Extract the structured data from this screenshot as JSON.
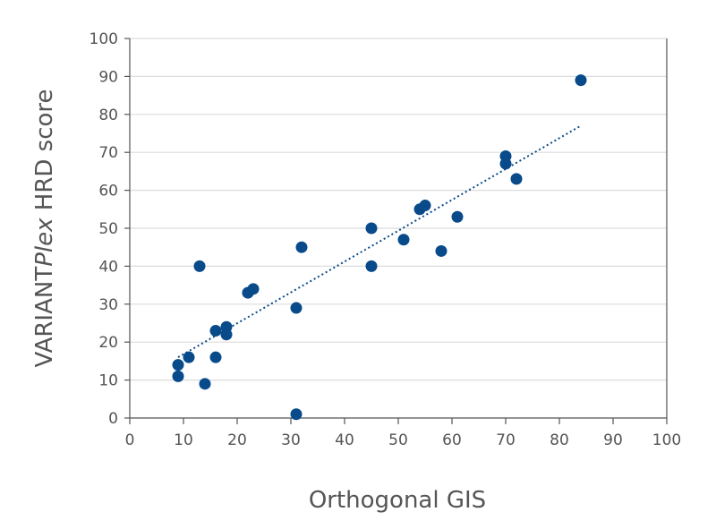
{
  "chart_data": {
    "type": "scatter",
    "xlabel": "Orthogonal GIS",
    "ylabel_parts": [
      "VARIANT",
      "Plex",
      " HRD score"
    ],
    "xlim": [
      0,
      100
    ],
    "ylim": [
      0,
      100
    ],
    "xticks": [
      0,
      10,
      20,
      30,
      40,
      50,
      60,
      70,
      80,
      90,
      100
    ],
    "yticks": [
      0,
      10,
      20,
      30,
      40,
      50,
      60,
      70,
      80,
      90,
      100
    ],
    "grid": "horizontal",
    "points": [
      {
        "x": 9,
        "y": 11
      },
      {
        "x": 9,
        "y": 14
      },
      {
        "x": 11,
        "y": 16
      },
      {
        "x": 13,
        "y": 40
      },
      {
        "x": 14,
        "y": 9
      },
      {
        "x": 16,
        "y": 23
      },
      {
        "x": 16,
        "y": 16
      },
      {
        "x": 18,
        "y": 24
      },
      {
        "x": 18,
        "y": 22
      },
      {
        "x": 22,
        "y": 33
      },
      {
        "x": 22,
        "y": 33
      },
      {
        "x": 23,
        "y": 34
      },
      {
        "x": 31,
        "y": 29
      },
      {
        "x": 31,
        "y": 1
      },
      {
        "x": 32,
        "y": 45
      },
      {
        "x": 45,
        "y": 50
      },
      {
        "x": 45,
        "y": 40
      },
      {
        "x": 51,
        "y": 47
      },
      {
        "x": 54,
        "y": 55
      },
      {
        "x": 55,
        "y": 56
      },
      {
        "x": 58,
        "y": 44
      },
      {
        "x": 61,
        "y": 53
      },
      {
        "x": 70,
        "y": 69
      },
      {
        "x": 70,
        "y": 67
      },
      {
        "x": 72,
        "y": 63
      },
      {
        "x": 84,
        "y": 89
      }
    ],
    "trendline": {
      "style": "dotted",
      "x": [
        9,
        84
      ],
      "y": [
        16,
        77
      ]
    },
    "colors": {
      "points": "#084a8a",
      "trendline": "#084a8a",
      "grid": "#dcdcdc",
      "axis": "#555555"
    }
  }
}
